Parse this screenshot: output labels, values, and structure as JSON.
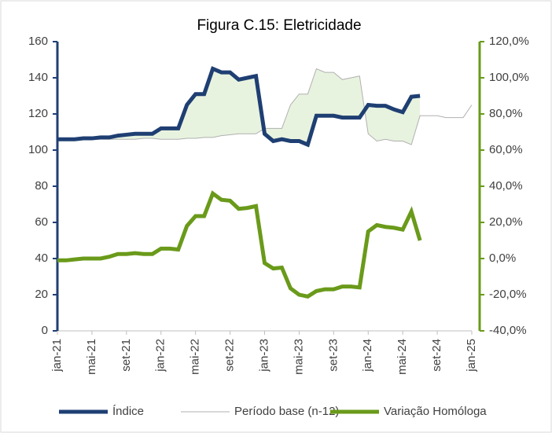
{
  "chart_data": {
    "type": "line",
    "title": "Figura C.15: Eletricidade",
    "categories": [
      "jan-21",
      null,
      null,
      null,
      "mai-21",
      null,
      null,
      null,
      "set-21",
      null,
      null,
      null,
      "jan-22",
      null,
      null,
      null,
      "mai-22",
      null,
      null,
      null,
      "set-22",
      null,
      null,
      null,
      "jan-23",
      null,
      null,
      null,
      "mai-23",
      null,
      null,
      null,
      "set-23",
      null,
      null,
      null,
      "jan-24",
      null,
      null,
      null,
      "mai-24",
      null,
      null,
      null,
      "set-24",
      null,
      null,
      null,
      "jan-25"
    ],
    "series": [
      {
        "name": "Índice",
        "color": "#1f3f73",
        "axis": "y",
        "values": [
          106,
          106,
          106,
          106.5,
          106.5,
          107,
          107,
          108,
          108.5,
          109,
          109,
          109,
          112,
          112,
          112,
          125,
          131,
          131,
          145,
          143,
          143,
          139,
          140,
          141,
          109,
          105,
          106,
          105,
          105,
          103,
          119,
          119,
          119,
          118,
          118,
          118,
          125,
          124.5,
          124.5,
          122.5,
          121,
          129.5,
          130,
          null,
          null,
          null,
          null,
          null,
          null
        ]
      },
      {
        "name": "Período base (n-12)",
        "color": "#b0b0b0",
        "axis": "y",
        "values": [
          106,
          106,
          106,
          106,
          106,
          106,
          106,
          106,
          106,
          106,
          106.5,
          106.5,
          106,
          106,
          106,
          106.5,
          106.5,
          107,
          107,
          108,
          108.5,
          109,
          109,
          109,
          112,
          112,
          112,
          125,
          131,
          131,
          145,
          143,
          143,
          139,
          140,
          141,
          109,
          105,
          106,
          105,
          105,
          103,
          119,
          119,
          119,
          118,
          118,
          118,
          125
        ]
      },
      {
        "name": "Variação Homóloga",
        "color": "#6a9a1a",
        "axis": "y2",
        "values": [
          -1,
          -1,
          -0.5,
          0,
          0,
          0,
          1,
          2.5,
          2.5,
          3,
          2.5,
          2.5,
          5.5,
          5.5,
          5,
          18,
          23.5,
          23.5,
          36,
          32.5,
          32,
          27.5,
          28,
          29,
          -2.5,
          -5.5,
          -5,
          -16.5,
          -20,
          -21,
          -18,
          -17,
          -17,
          -15.5,
          -15.5,
          -16,
          15,
          18.5,
          17.5,
          17,
          16,
          26,
          10,
          null,
          null,
          null,
          null,
          null,
          null
        ]
      }
    ],
    "ylim": [
      0,
      160
    ],
    "yticks": [
      0,
      20,
      40,
      60,
      80,
      100,
      120,
      140,
      160
    ],
    "y2lim": [
      -40,
      120
    ],
    "y2ticks": [
      {
        "value": -40,
        "label": "-40,0%"
      },
      {
        "value": -20,
        "label": "-20,0%"
      },
      {
        "value": 0,
        "label": "0,0%"
      },
      {
        "value": 20,
        "label": "20,0%"
      },
      {
        "value": 40,
        "label": "40,0%"
      },
      {
        "value": 60,
        "label": "60,0%"
      },
      {
        "value": 80,
        "label": "80,0%"
      },
      {
        "value": 100,
        "label": "100,0%"
      },
      {
        "value": 120,
        "label": "120,0%"
      }
    ],
    "legend": "bottom",
    "grid": false
  }
}
